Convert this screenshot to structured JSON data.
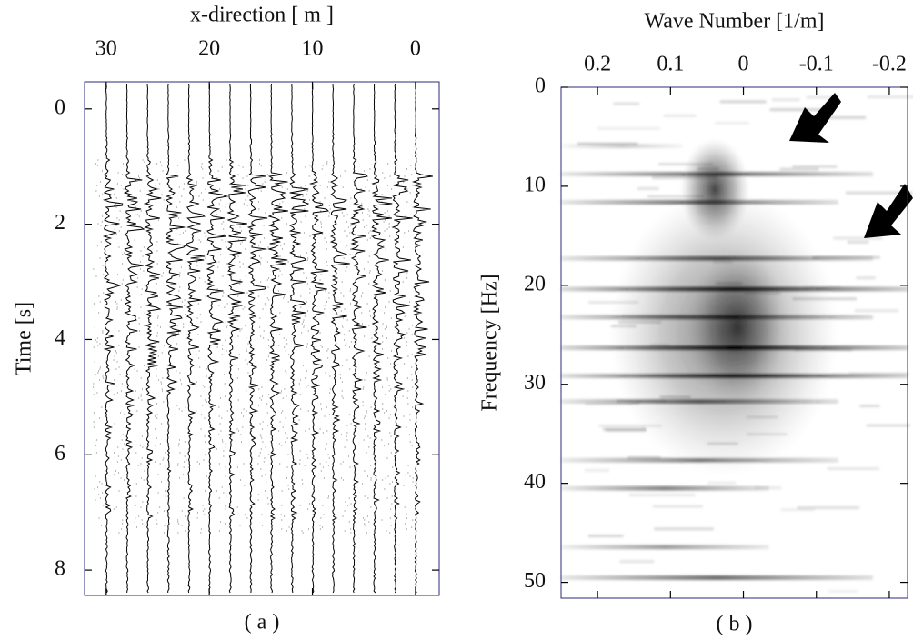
{
  "chart_data": [
    {
      "type": "wiggle",
      "title": "x-direction [ m ]",
      "y_label": "Time [s]",
      "caption": "( a )",
      "xlim": [
        32.1,
        -2.3
      ],
      "xticks": [
        30,
        20,
        10,
        0
      ],
      "ylim": [
        -0.47,
        8.44
      ],
      "yticks": [
        0,
        2,
        4,
        6,
        8
      ],
      "y_inverted": true
    },
    {
      "type": "heatmap",
      "title": "Wave Number [1/m]",
      "y_label": "Frequency [Hz]",
      "caption": "( b )",
      "xlim": [
        0.25,
        -0.225
      ],
      "xticks": [
        0.2,
        0.1,
        0,
        -0.1,
        -0.2
      ],
      "ylim": [
        0,
        51.6
      ],
      "yticks": [
        0,
        10,
        20,
        30,
        40,
        50
      ],
      "y_inverted": true
    }
  ]
}
